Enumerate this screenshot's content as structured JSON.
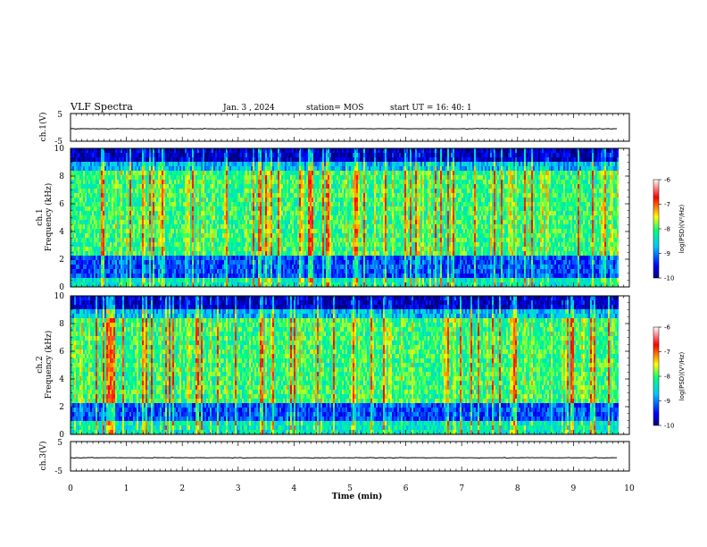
{
  "header": {
    "title": "VLF Spectra",
    "date": "Jan. 3 , 2024",
    "station": "station= MOS",
    "start": "start UT =  16: 40: 1"
  },
  "colors": {
    "colormap": [
      "#000080",
      "#0000ff",
      "#00c8ff",
      "#00ff80",
      "#ffff00",
      "#ff0000",
      "#ffffff"
    ],
    "axis": "#000000",
    "background": "#ffffff"
  },
  "chart_data": [
    {
      "type": "line",
      "panel": "channel-1-waveform",
      "ylabel": "ch.1(V)",
      "ylim": [
        -5,
        5
      ],
      "yticks": [
        "5",
        "-5"
      ],
      "series": [
        {
          "values_approx": "flat near -0.5 V (close to 0) over 0–9.8 min"
        }
      ]
    },
    {
      "type": "heatmap",
      "panel": "channel-1-spectrogram",
      "ylabel_line1": "ch.1",
      "ylabel_line2": "Frequency (kHz)",
      "ylim": [
        0,
        10
      ],
      "yticks": [
        "0",
        "2",
        "4",
        "6",
        "8",
        "10"
      ],
      "colorbar": {
        "label": "log(PSD)(V²/Hz)",
        "range": [
          -10,
          -6
        ],
        "ticks": [
          "-6",
          "-7",
          "-8",
          "-9",
          "-10"
        ]
      },
      "description_values": {
        "data_end_min": 9.8
      }
    },
    {
      "type": "heatmap",
      "panel": "channel-2-spectrogram",
      "ylabel_line1": "ch.2",
      "ylabel_line2": "Frequency (kHz)",
      "ylim": [
        0,
        10
      ],
      "yticks": [
        "0",
        "2",
        "4",
        "6",
        "8",
        "10"
      ],
      "colorbar": {
        "label": "log(PSD)(V²/Hz)",
        "range": [
          -10,
          -6
        ],
        "ticks": [
          "-6",
          "-7",
          "-8",
          "-9",
          "-10"
        ]
      },
      "description_values": {
        "data_end_min": 9.8
      }
    },
    {
      "type": "line",
      "panel": "channel-3-waveform",
      "ylabel": "ch.3(V)",
      "ylim": [
        -5,
        5
      ],
      "yticks": [
        "5",
        "-5"
      ],
      "series": [
        {
          "values_approx": "flat near -0.5 V (close to 0) over 0–9.8 min"
        }
      ]
    }
  ],
  "xaxis": {
    "label": "Time  (min)",
    "xlim": [
      0,
      10
    ],
    "ticks": [
      "0",
      "1",
      "2",
      "3",
      "4",
      "5",
      "6",
      "7",
      "8",
      "9",
      "10"
    ]
  }
}
